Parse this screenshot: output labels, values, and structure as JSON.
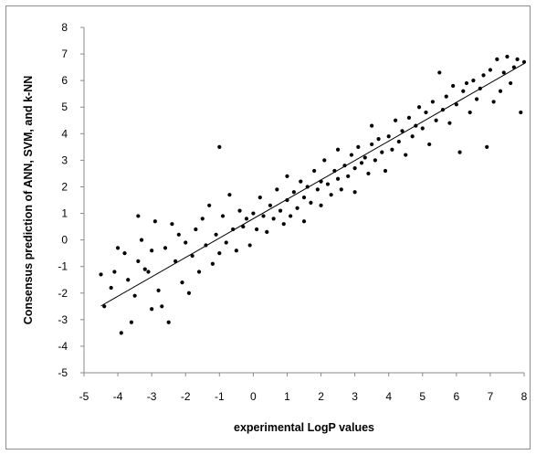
{
  "chart_data": {
    "type": "scatter",
    "title": "",
    "xlabel": "experimental LogP values",
    "ylabel": "Consensus prediction of ANN, SVM, and k-NN",
    "xlim": [
      -5,
      8
    ],
    "ylim": [
      -5,
      8
    ],
    "xticks": [
      -5,
      -4,
      -3,
      -2,
      -1,
      0,
      1,
      2,
      3,
      4,
      5,
      6,
      7,
      8
    ],
    "yticks": [
      -5,
      -4,
      -3,
      -2,
      -1,
      0,
      1,
      2,
      3,
      4,
      5,
      6,
      7,
      8
    ],
    "grid": false,
    "legend": "none",
    "marker_color": "#000000",
    "trendline": {
      "slope": 0.73,
      "intercept": 0.8,
      "x_range": [
        -4.5,
        8
      ]
    },
    "series": [
      {
        "points": [
          [
            -4.5,
            -1.3
          ],
          [
            -4.4,
            -2.5
          ],
          [
            -4.2,
            -1.8
          ],
          [
            -4.1,
            -1.2
          ],
          [
            -4.0,
            -0.3
          ],
          [
            -3.9,
            -3.5
          ],
          [
            -3.8,
            -0.5
          ],
          [
            -3.7,
            -1.5
          ],
          [
            -3.6,
            -3.1
          ],
          [
            -3.5,
            -2.1
          ],
          [
            -3.4,
            0.9
          ],
          [
            -3.4,
            -0.8
          ],
          [
            -3.3,
            0.0
          ],
          [
            -3.2,
            -1.1
          ],
          [
            -3.1,
            -1.2
          ],
          [
            -3.0,
            -0.4
          ],
          [
            -3.0,
            -2.6
          ],
          [
            -2.9,
            0.7
          ],
          [
            -2.8,
            -1.9
          ],
          [
            -2.7,
            -2.5
          ],
          [
            -2.6,
            -0.3
          ],
          [
            -2.5,
            -3.1
          ],
          [
            -2.4,
            0.6
          ],
          [
            -2.3,
            -0.8
          ],
          [
            -2.2,
            0.2
          ],
          [
            -2.1,
            -1.6
          ],
          [
            -2.0,
            -0.1
          ],
          [
            -1.9,
            -2.0
          ],
          [
            -1.8,
            -0.6
          ],
          [
            -1.7,
            0.4
          ],
          [
            -1.6,
            -1.2
          ],
          [
            -1.5,
            0.8
          ],
          [
            -1.4,
            -0.2
          ],
          [
            -1.3,
            1.3
          ],
          [
            -1.2,
            -0.9
          ],
          [
            -1.1,
            0.2
          ],
          [
            -1.0,
            3.5
          ],
          [
            -1.0,
            -0.5
          ],
          [
            -0.9,
            0.9
          ],
          [
            -0.8,
            -0.1
          ],
          [
            -0.7,
            1.7
          ],
          [
            -0.6,
            0.4
          ],
          [
            -0.5,
            -0.4
          ],
          [
            -0.4,
            1.1
          ],
          [
            -0.3,
            0.5
          ],
          [
            -0.2,
            0.8
          ],
          [
            -0.1,
            -0.2
          ],
          [
            0.0,
            1.0
          ],
          [
            0.1,
            0.4
          ],
          [
            0.2,
            1.6
          ],
          [
            0.3,
            0.9
          ],
          [
            0.4,
            0.3
          ],
          [
            0.5,
            1.3
          ],
          [
            0.6,
            0.8
          ],
          [
            0.7,
            1.9
          ],
          [
            0.8,
            1.1
          ],
          [
            0.9,
            0.6
          ],
          [
            1.0,
            1.5
          ],
          [
            1.0,
            2.4
          ],
          [
            1.1,
            0.9
          ],
          [
            1.2,
            1.8
          ],
          [
            1.3,
            1.2
          ],
          [
            1.4,
            2.2
          ],
          [
            1.5,
            1.6
          ],
          [
            1.5,
            0.7
          ],
          [
            1.6,
            2.0
          ],
          [
            1.7,
            1.4
          ],
          [
            1.8,
            2.6
          ],
          [
            1.9,
            1.9
          ],
          [
            2.0,
            2.2
          ],
          [
            2.0,
            1.3
          ],
          [
            2.1,
            3.0
          ],
          [
            2.2,
            2.1
          ],
          [
            2.3,
            1.7
          ],
          [
            2.4,
            2.6
          ],
          [
            2.5,
            2.3
          ],
          [
            2.5,
            3.4
          ],
          [
            2.6,
            1.9
          ],
          [
            2.7,
            2.8
          ],
          [
            2.8,
            2.4
          ],
          [
            2.9,
            3.2
          ],
          [
            3.0,
            2.7
          ],
          [
            3.0,
            1.8
          ],
          [
            3.1,
            3.5
          ],
          [
            3.2,
            2.9
          ],
          [
            3.3,
            3.1
          ],
          [
            3.4,
            2.5
          ],
          [
            3.5,
            3.6
          ],
          [
            3.5,
            4.3
          ],
          [
            3.6,
            3.0
          ],
          [
            3.7,
            3.8
          ],
          [
            3.8,
            3.3
          ],
          [
            3.9,
            2.6
          ],
          [
            4.0,
            3.9
          ],
          [
            4.1,
            3.4
          ],
          [
            4.2,
            4.5
          ],
          [
            4.3,
            3.7
          ],
          [
            4.4,
            4.1
          ],
          [
            4.5,
            3.2
          ],
          [
            4.6,
            4.6
          ],
          [
            4.7,
            3.9
          ],
          [
            4.8,
            4.3
          ],
          [
            4.9,
            5.0
          ],
          [
            5.0,
            4.2
          ],
          [
            5.1,
            4.8
          ],
          [
            5.2,
            3.6
          ],
          [
            5.3,
            5.2
          ],
          [
            5.4,
            4.5
          ],
          [
            5.5,
            6.3
          ],
          [
            5.6,
            4.9
          ],
          [
            5.7,
            5.4
          ],
          [
            5.8,
            4.4
          ],
          [
            5.9,
            5.8
          ],
          [
            6.0,
            5.1
          ],
          [
            6.1,
            3.3
          ],
          [
            6.2,
            5.6
          ],
          [
            6.3,
            5.9
          ],
          [
            6.4,
            4.8
          ],
          [
            6.5,
            6.0
          ],
          [
            6.6,
            5.3
          ],
          [
            6.7,
            5.7
          ],
          [
            6.8,
            6.2
          ],
          [
            6.9,
            3.5
          ],
          [
            7.0,
            6.4
          ],
          [
            7.1,
            5.2
          ],
          [
            7.2,
            6.8
          ],
          [
            7.3,
            5.6
          ],
          [
            7.4,
            6.3
          ],
          [
            7.5,
            6.9
          ],
          [
            7.6,
            5.9
          ],
          [
            7.7,
            6.5
          ],
          [
            7.8,
            6.8
          ],
          [
            7.9,
            4.8
          ],
          [
            8.0,
            6.7
          ]
        ]
      }
    ]
  }
}
